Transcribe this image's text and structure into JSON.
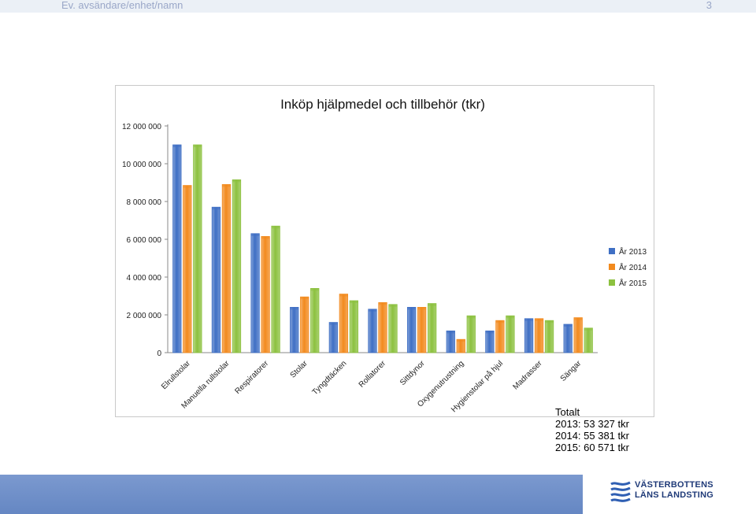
{
  "header": {
    "sender": "Ev. avsändare/enhet/namn",
    "page_number": "3"
  },
  "chart_data": {
    "type": "bar",
    "title": "Inköp hjälpmedel och tillbehör (tkr)",
    "xlabel": "",
    "ylabel": "",
    "ylim": [
      0,
      12000000
    ],
    "yticks": [
      0,
      2000000,
      4000000,
      6000000,
      8000000,
      10000000,
      12000000
    ],
    "ytick_labels": [
      "0",
      "2 000 000",
      "4 000 000",
      "6 000 000",
      "8 000 000",
      "10 000 000",
      "12 000 000"
    ],
    "grid": false,
    "legend_position": "right",
    "categories": [
      "Elrullstolar",
      "Manuella rullstolar",
      "Respiratorer",
      "Stolar",
      "Tyngdtäcken",
      "Rollatorer",
      "Sittdynor",
      "Oxygenutrustning",
      "Hygienstolar på hjul",
      "Madrasser",
      "Sängar"
    ],
    "series": [
      {
        "name": "År 2013",
        "color": "#3f6fc4",
        "values": [
          11000000,
          7700000,
          6300000,
          2400000,
          1600000,
          2300000,
          2400000,
          1150000,
          1150000,
          1800000,
          1500000
        ]
      },
      {
        "name": "År 2014",
        "color": "#f28a1e",
        "values": [
          8850000,
          8900000,
          6150000,
          2950000,
          3100000,
          2650000,
          2400000,
          700000,
          1700000,
          1800000,
          1850000
        ]
      },
      {
        "name": "År 2015",
        "color": "#8cc13f",
        "values": [
          11000000,
          9150000,
          6700000,
          3400000,
          2750000,
          2550000,
          2600000,
          1950000,
          1950000,
          1700000,
          1300000
        ]
      }
    ]
  },
  "totals": {
    "heading": "Totalt",
    "lines": [
      "2013: 53 327 tkr",
      "2014: 55 381 tkr",
      "2015: 60 571 tkr"
    ]
  },
  "logo": {
    "line1": "VÄSTERBOTTENS",
    "line2": "LÄNS LANDSTING"
  }
}
